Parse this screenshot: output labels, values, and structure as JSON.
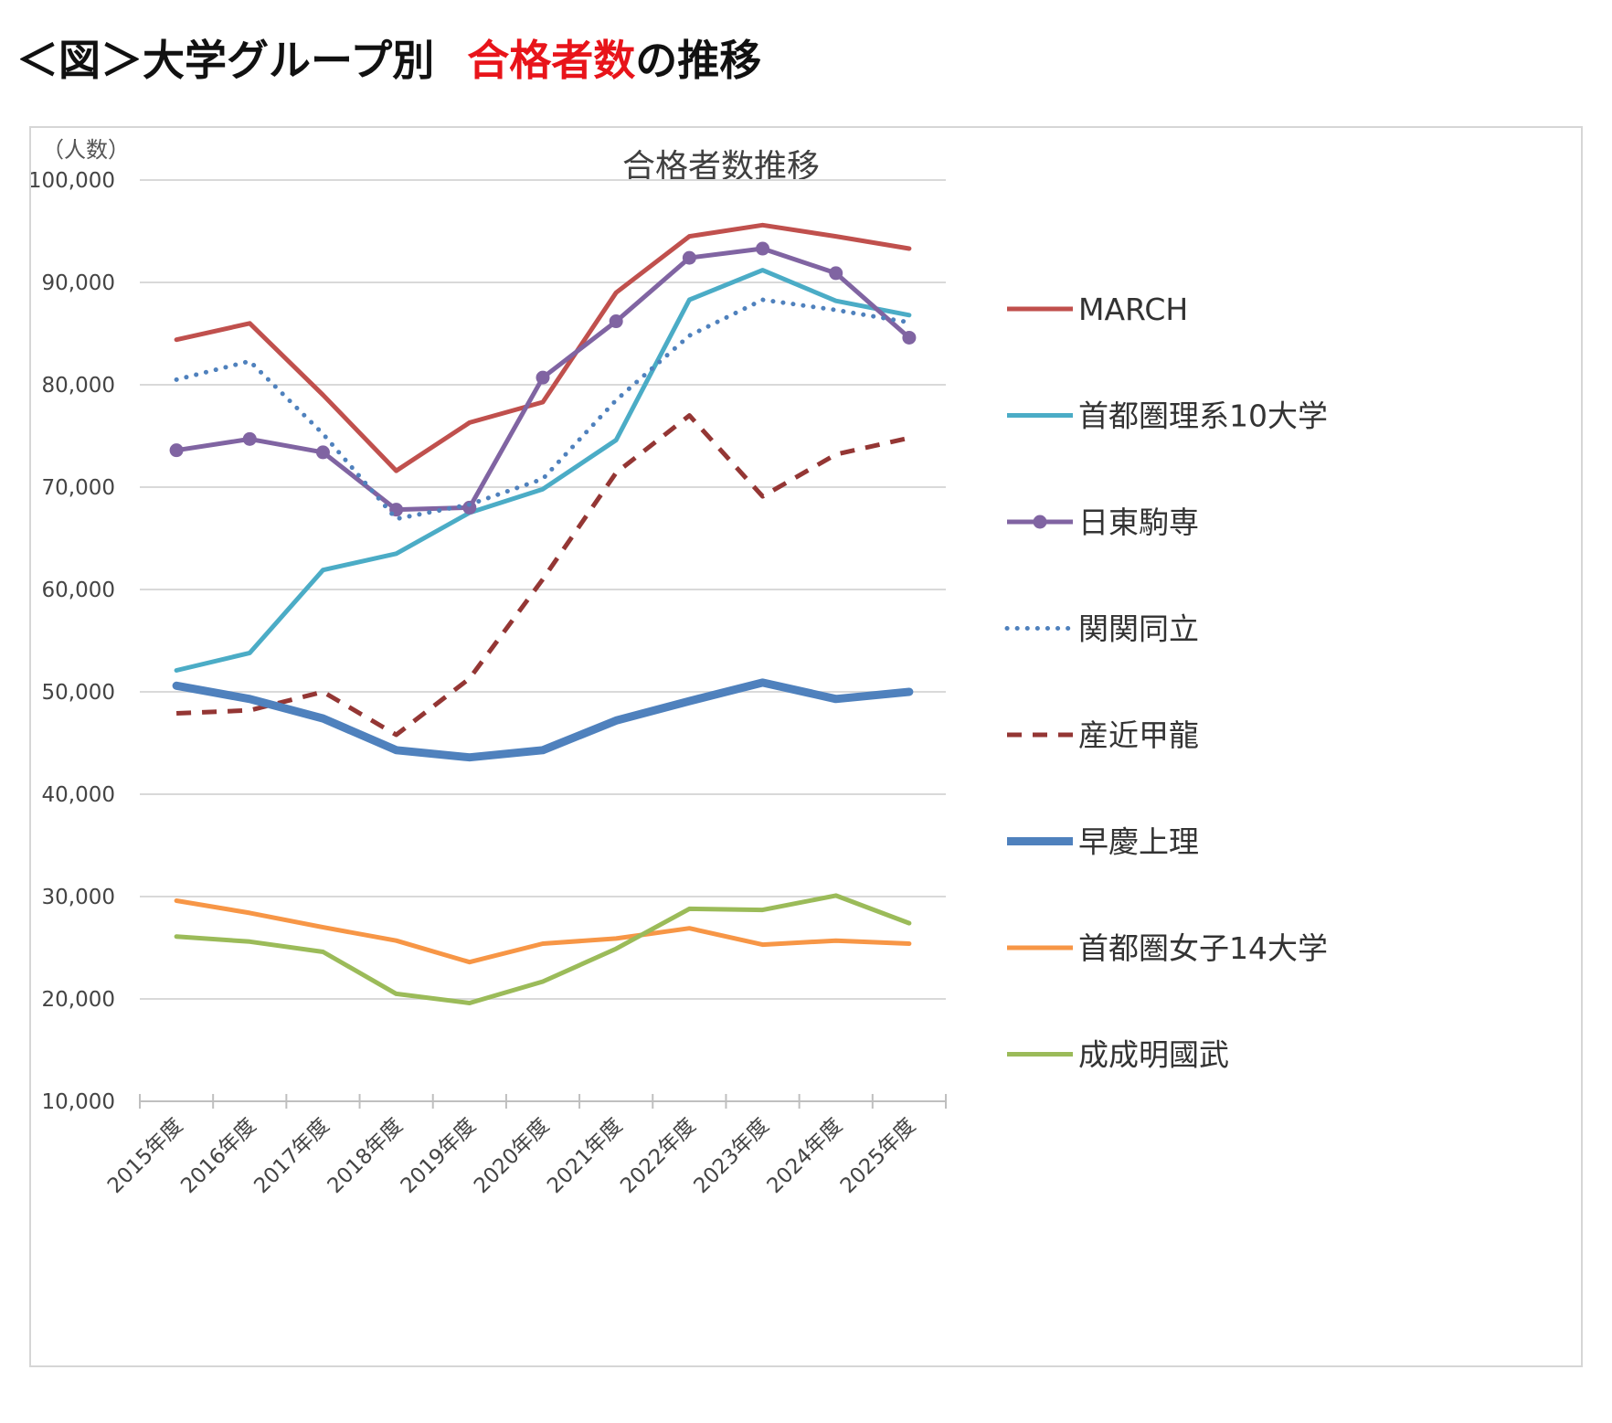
{
  "figure": {
    "heading_prefix": "＜図＞大学グループ別",
    "heading_highlight": "合格者数",
    "heading_suffix": "の推移",
    "highlight_color": "#e8141a"
  },
  "chart_data": {
    "type": "line",
    "title": "合格者数推移",
    "ylabel": "（人数）",
    "xlabel": "",
    "ylim": [
      10000,
      100000
    ],
    "ytick_values": [
      10000,
      20000,
      30000,
      40000,
      50000,
      60000,
      70000,
      80000,
      90000,
      100000
    ],
    "ytick_labels": [
      "10,000",
      "20,000",
      "30,000",
      "40,000",
      "50,000",
      "60,000",
      "70,000",
      "80,000",
      "90,000",
      "100,000"
    ],
    "grid": true,
    "legend_position": "right",
    "categories": [
      "2015年度",
      "2016年度",
      "2017年度",
      "2018年度",
      "2019年度",
      "2020年度",
      "2021年度",
      "2022年度",
      "2023年度",
      "2024年度",
      "2025年度"
    ],
    "series": [
      {
        "name": "MARCH",
        "color": "#c0504d",
        "dash": "solid",
        "width": 5,
        "marker": false,
        "values": [
          84400,
          86000,
          79000,
          71600,
          76300,
          78300,
          89000,
          94500,
          95600,
          94500,
          93300
        ]
      },
      {
        "name": "首都圏理系10大学",
        "color": "#4bacc6",
        "dash": "solid",
        "width": 5,
        "marker": false,
        "values": [
          52100,
          53800,
          61900,
          63500,
          67500,
          69800,
          74600,
          88300,
          91200,
          88200,
          86800
        ]
      },
      {
        "name": "日東駒専",
        "color": "#8064a2",
        "dash": "solid",
        "width": 5,
        "marker": true,
        "values": [
          73600,
          74700,
          73400,
          67800,
          68000,
          80700,
          86200,
          92400,
          93300,
          90900,
          84600
        ]
      },
      {
        "name": "関関同立",
        "color": "#4f81bd",
        "dash": "dotted",
        "width": 5,
        "marker": false,
        "values": [
          80500,
          82300,
          75200,
          66900,
          68300,
          70800,
          78500,
          84800,
          88300,
          87300,
          86100
        ]
      },
      {
        "name": "産近甲龍",
        "color": "#943634",
        "dash": "dashed",
        "width": 5,
        "marker": false,
        "values": [
          47900,
          48200,
          50000,
          45800,
          51300,
          61000,
          71400,
          77000,
          69100,
          73200,
          74800
        ]
      },
      {
        "name": "早慶上理",
        "color": "#4f81bd",
        "dash": "solid",
        "width": 9,
        "marker": false,
        "values": [
          50600,
          49300,
          47400,
          44300,
          43600,
          44300,
          47200,
          49100,
          50900,
          49300,
          50000
        ]
      },
      {
        "name": "首都圏女子14大学",
        "color": "#f79646",
        "dash": "solid",
        "width": 5,
        "marker": false,
        "values": [
          29600,
          28400,
          27000,
          25700,
          23600,
          25400,
          25900,
          26900,
          25300,
          25700,
          25400
        ]
      },
      {
        "name": "成成明國武",
        "color": "#9bbb59",
        "dash": "solid",
        "width": 5,
        "marker": false,
        "values": [
          26100,
          25600,
          24600,
          20500,
          19600,
          21700,
          24900,
          28800,
          28700,
          30100,
          27400
        ]
      }
    ]
  }
}
